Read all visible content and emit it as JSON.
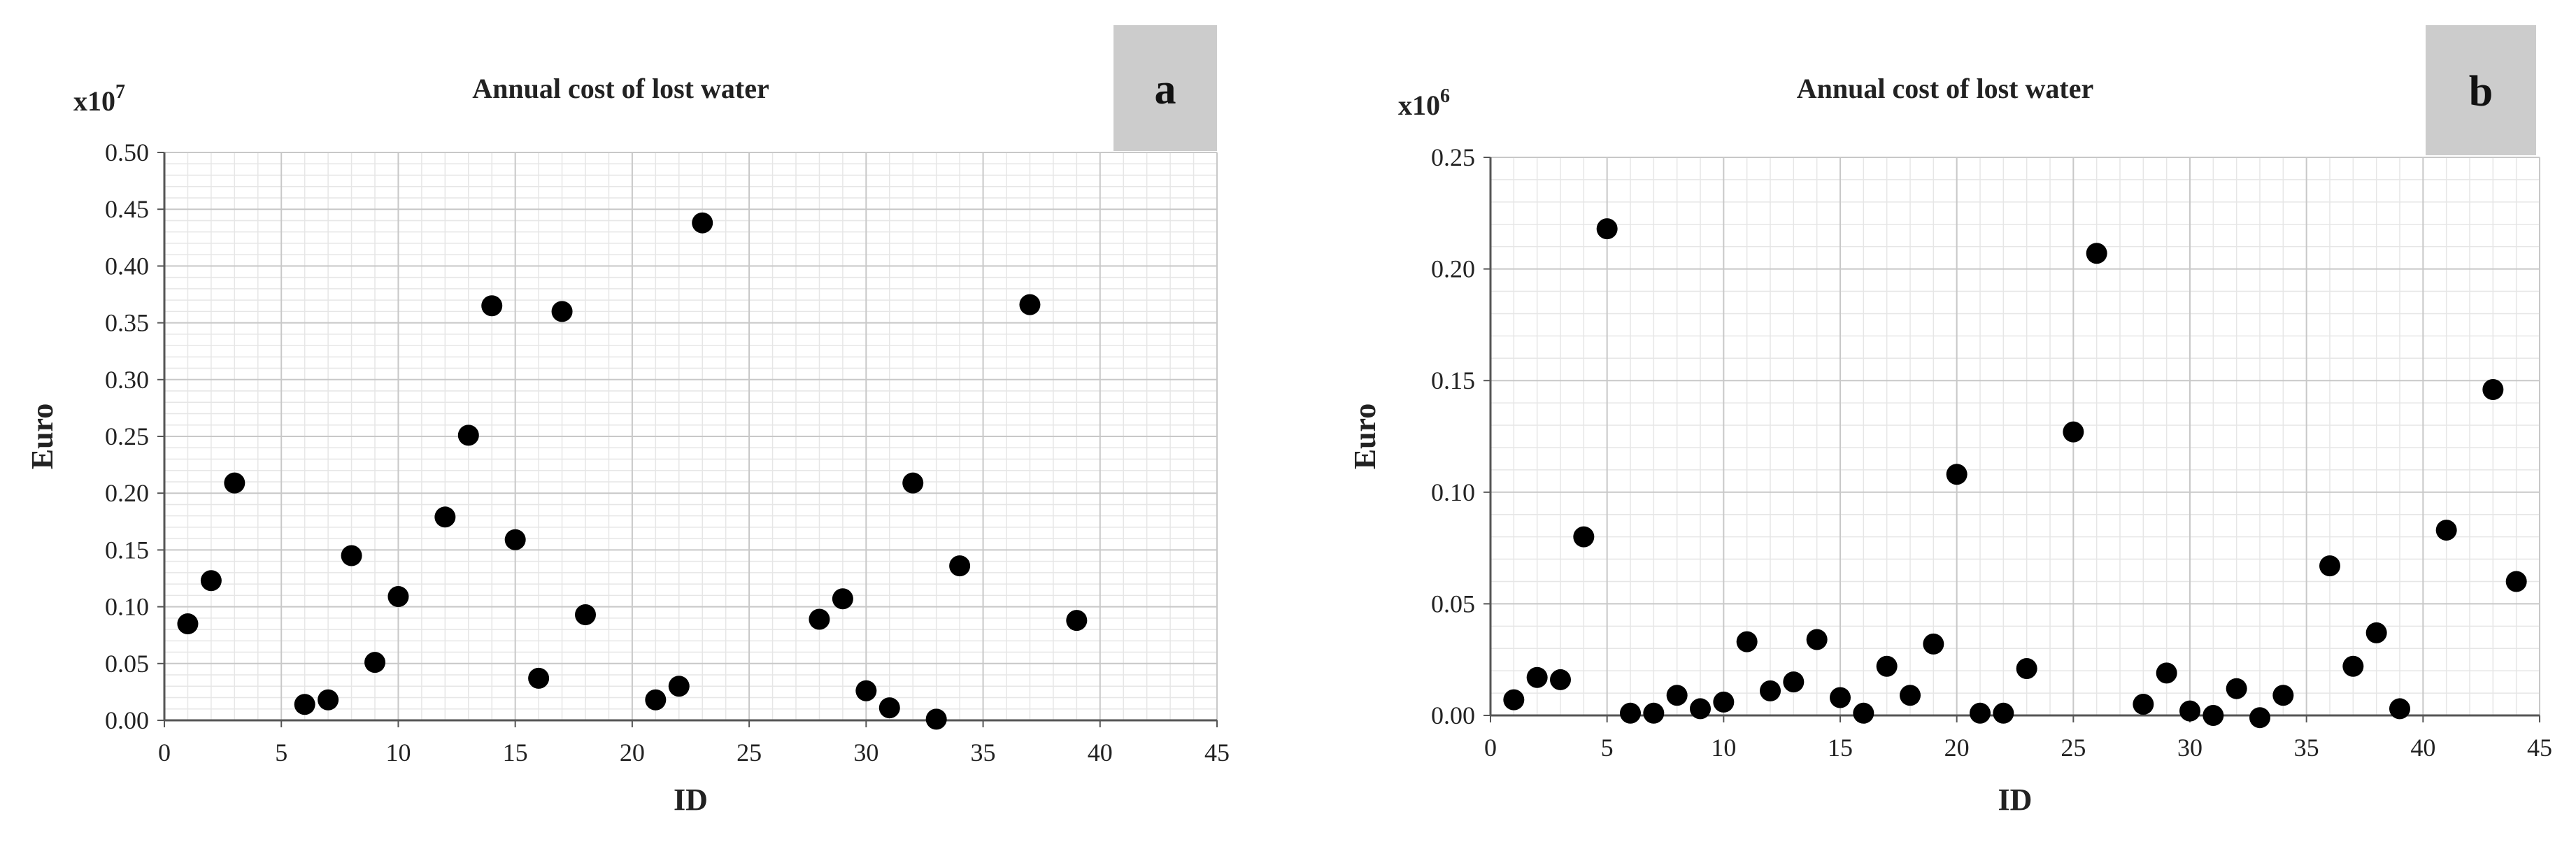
{
  "chart_data": [
    {
      "type": "scatter",
      "title": "Annual cost of lost water",
      "panel_label": "a",
      "xlabel": "ID",
      "ylabel": "Euro",
      "y_multiplier": "x10",
      "y_exponent": "7",
      "xlim": [
        0,
        45
      ],
      "ylim": [
        0,
        0.5
      ],
      "x_ticks": [
        0,
        5,
        10,
        15,
        20,
        25,
        30,
        35,
        40,
        45
      ],
      "y_ticks": [
        0.0,
        0.05,
        0.1,
        0.15,
        0.2,
        0.25,
        0.3,
        0.35,
        0.4,
        0.45,
        0.5
      ],
      "grid": true,
      "marker_color": "#000000",
      "panel_label_bg": "#cccccc",
      "points": [
        {
          "x": 1,
          "y": 0.085
        },
        {
          "x": 2,
          "y": 0.123
        },
        {
          "x": 3,
          "y": 0.209
        },
        {
          "x": 6,
          "y": 0.014
        },
        {
          "x": 7,
          "y": 0.018
        },
        {
          "x": 8,
          "y": 0.145
        },
        {
          "x": 9,
          "y": 0.051
        },
        {
          "x": 10,
          "y": 0.109
        },
        {
          "x": 12,
          "y": 0.179
        },
        {
          "x": 13,
          "y": 0.251
        },
        {
          "x": 14,
          "y": 0.365
        },
        {
          "x": 15,
          "y": 0.159
        },
        {
          "x": 16,
          "y": 0.037
        },
        {
          "x": 17,
          "y": 0.36
        },
        {
          "x": 18,
          "y": 0.093
        },
        {
          "x": 21,
          "y": 0.018
        },
        {
          "x": 22,
          "y": 0.03
        },
        {
          "x": 23,
          "y": 0.438
        },
        {
          "x": 28,
          "y": 0.089
        },
        {
          "x": 29,
          "y": 0.107
        },
        {
          "x": 30,
          "y": 0.026
        },
        {
          "x": 31,
          "y": 0.011
        },
        {
          "x": 32,
          "y": 0.209
        },
        {
          "x": 33,
          "y": 0.001
        },
        {
          "x": 34,
          "y": 0.136
        },
        {
          "x": 37,
          "y": 0.366
        },
        {
          "x": 39,
          "y": 0.088
        }
      ]
    },
    {
      "type": "scatter",
      "title": "Annual cost of lost water",
      "panel_label": "b",
      "xlabel": "ID",
      "ylabel": "Euro",
      "y_multiplier": "x10",
      "y_exponent": "6",
      "xlim": [
        0,
        45
      ],
      "ylim": [
        0,
        0.25
      ],
      "x_ticks": [
        0,
        5,
        10,
        15,
        20,
        25,
        30,
        35,
        40,
        45
      ],
      "y_ticks": [
        0.0,
        0.05,
        0.1,
        0.15,
        0.2,
        0.25
      ],
      "grid": true,
      "marker_color": "#000000",
      "panel_label_bg": "#cccccc",
      "points": [
        {
          "x": 1,
          "y": 0.007
        },
        {
          "x": 2,
          "y": 0.017
        },
        {
          "x": 3,
          "y": 0.016
        },
        {
          "x": 4,
          "y": 0.08
        },
        {
          "x": 5,
          "y": 0.218
        },
        {
          "x": 6,
          "y": 0.001
        },
        {
          "x": 7,
          "y": 0.001
        },
        {
          "x": 8,
          "y": 0.009
        },
        {
          "x": 9,
          "y": 0.003
        },
        {
          "x": 10,
          "y": 0.006
        },
        {
          "x": 11,
          "y": 0.033
        },
        {
          "x": 12,
          "y": 0.011
        },
        {
          "x": 13,
          "y": 0.015
        },
        {
          "x": 14,
          "y": 0.034
        },
        {
          "x": 15,
          "y": 0.008
        },
        {
          "x": 16,
          "y": 0.001
        },
        {
          "x": 17,
          "y": 0.022
        },
        {
          "x": 18,
          "y": 0.009
        },
        {
          "x": 19,
          "y": 0.032
        },
        {
          "x": 20,
          "y": 0.108
        },
        {
          "x": 21,
          "y": 0.001
        },
        {
          "x": 22,
          "y": 0.001
        },
        {
          "x": 23,
          "y": 0.021
        },
        {
          "x": 25,
          "y": 0.127
        },
        {
          "x": 26,
          "y": 0.207
        },
        {
          "x": 28,
          "y": 0.005
        },
        {
          "x": 29,
          "y": 0.019
        },
        {
          "x": 30,
          "y": 0.002
        },
        {
          "x": 31,
          "y": 0.0
        },
        {
          "x": 32,
          "y": 0.012
        },
        {
          "x": 33,
          "y": -0.001
        },
        {
          "x": 34,
          "y": 0.009
        },
        {
          "x": 36,
          "y": 0.067
        },
        {
          "x": 37,
          "y": 0.022
        },
        {
          "x": 38,
          "y": 0.037
        },
        {
          "x": 39,
          "y": 0.003
        },
        {
          "x": 41,
          "y": 0.083
        },
        {
          "x": 43,
          "y": 0.146
        },
        {
          "x": 44,
          "y": 0.06
        }
      ]
    }
  ]
}
